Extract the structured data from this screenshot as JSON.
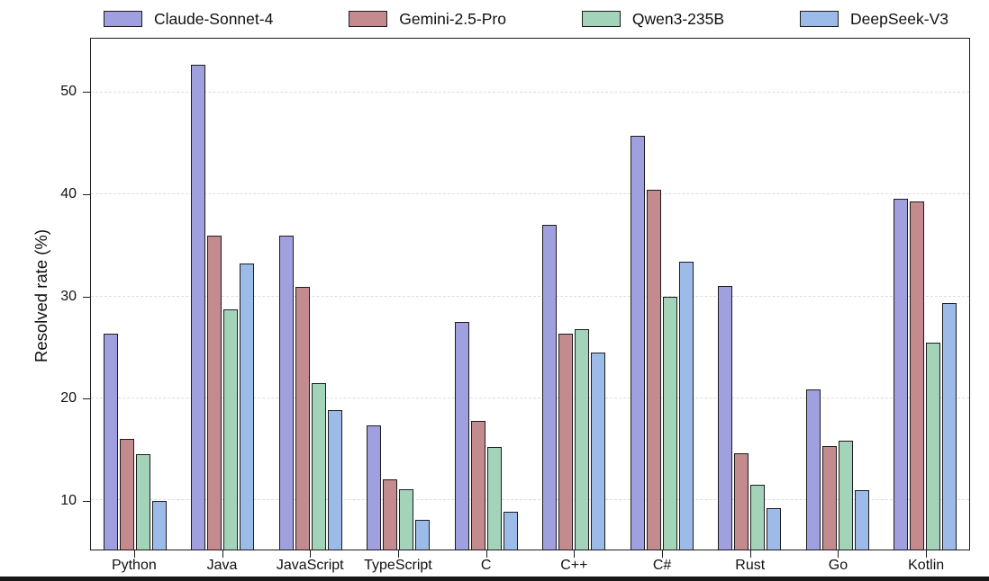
{
  "chart_data": {
    "type": "bar",
    "title": "",
    "ylabel": "Resolved rate (%)",
    "xlabel": "",
    "ylim": [
      5.15,
      55.3
    ],
    "yticks": [
      10,
      20,
      30,
      40,
      50
    ],
    "grid": "horizontal-dashed",
    "legend_position": "top",
    "categories": [
      "Python",
      "Java",
      "JavaScript",
      "TypeScript",
      "C",
      "C++",
      "C#",
      "Rust",
      "Go",
      "Kotlin"
    ],
    "series": [
      {
        "name": "Claude-Sonnet-4",
        "color": "#a0a0e0",
        "values": [
          26.3,
          52.7,
          36.0,
          17.3,
          27.5,
          37.0,
          45.8,
          31.0,
          20.9,
          39.6
        ]
      },
      {
        "name": "Gemini-2.5-Pro",
        "color": "#c48b8f",
        "values": [
          16.0,
          36.0,
          30.9,
          12.0,
          17.8,
          26.3,
          40.5,
          14.6,
          15.3,
          39.3
        ]
      },
      {
        "name": "Qwen3-235B",
        "color": "#a3d4ba",
        "values": [
          14.5,
          28.7,
          21.5,
          11.1,
          15.2,
          26.8,
          30.0,
          11.5,
          15.8,
          25.5
        ]
      },
      {
        "name": "DeepSeek-V3",
        "color": "#9dbbe8",
        "values": [
          9.9,
          33.2,
          18.8,
          8.1,
          8.9,
          24.5,
          33.4,
          9.2,
          11.0,
          29.3
        ]
      }
    ],
    "colors": {
      "bar_edge": "#1c1c1c",
      "grid_line": "#dcdcdc",
      "axis": "#1c1c1c",
      "background": "#ffffff",
      "bottom_strip": "#181818"
    }
  }
}
